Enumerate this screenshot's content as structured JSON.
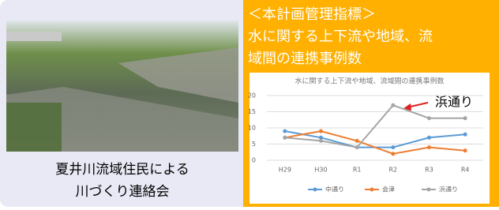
{
  "heading": [
    "＜本計画管理指標＞",
    "水に関する上下流や地域、流",
    "域間の連携事例数"
  ],
  "caption": [
    "夏井川流域住民による",
    "川づくり連絡会"
  ],
  "chart_data": {
    "type": "line",
    "title": "水に関する上下流や地域、流域間の連携事例数",
    "categories": [
      "H29",
      "H30",
      "R1",
      "R2",
      "R3",
      "R4"
    ],
    "series": [
      {
        "name": "中通り",
        "color": "#5b9bd5",
        "values": [
          9,
          7,
          4,
          4,
          7,
          8
        ]
      },
      {
        "name": "会津",
        "color": "#ed7d31",
        "values": [
          7,
          9,
          6,
          2,
          4,
          3
        ]
      },
      {
        "name": "浜通り",
        "color": "#a5a5a5",
        "values": [
          7,
          6,
          4,
          17,
          13,
          13
        ]
      }
    ],
    "ylim": [
      0,
      20
    ],
    "yticks": [
      0,
      5,
      10,
      15,
      20
    ],
    "grid": true,
    "legend": "bottom",
    "annotation": "浜通り"
  }
}
